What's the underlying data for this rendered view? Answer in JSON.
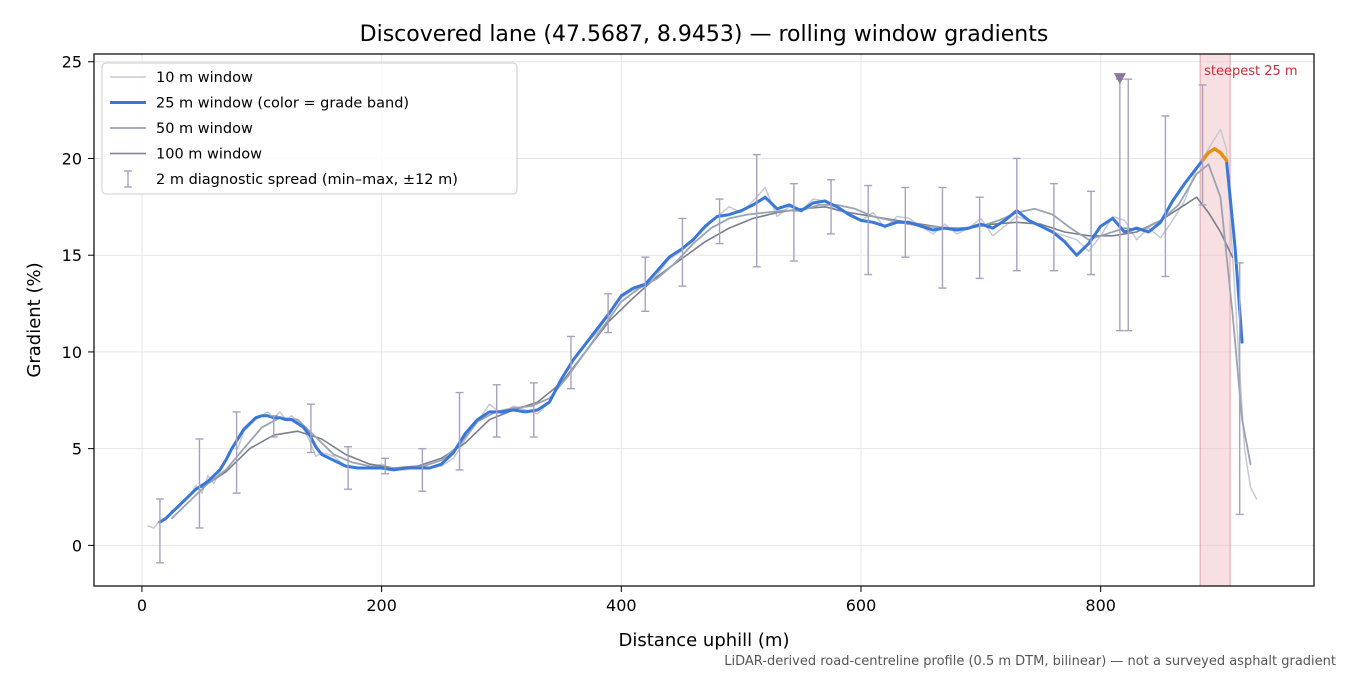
{
  "chart_data": {
    "type": "line",
    "title": "Discovered lane (47.5687, 8.9453) — rolling window gradients",
    "xlabel": "Distance uphill (m)",
    "ylabel": "Gradient (%)",
    "xlim": [
      -40,
      978
    ],
    "ylim": [
      -2.1,
      25.4
    ],
    "xticks": [
      "0",
      "200",
      "400",
      "600",
      "800"
    ],
    "yticks": [
      "0",
      "5",
      "10",
      "15",
      "20",
      "25"
    ],
    "grid": true,
    "legend_position": "top-left",
    "footnote": "LiDAR-derived road-centreline profile (0.5 m DTM, bilinear) — not a surveyed asphalt gradient",
    "annotation": {
      "text": "steepest 25 m",
      "x_range": [
        883,
        908
      ]
    },
    "marker": {
      "x": 816,
      "y": 24.1,
      "color": "#8878a0"
    },
    "colors": {
      "w10": "#c5c9d5",
      "w25": "#3a78d8",
      "w25_steep": "#e8900a",
      "w50": "#9aa3b2",
      "w100": "#7a7f8c",
      "spread": "#a8a0c0",
      "band_fill": "#f2c4c8",
      "band_edge": "#e4a0a8"
    },
    "series": [
      {
        "name": "10 m window",
        "key": "w10",
        "x": [
          5,
          10,
          15,
          20,
          25,
          30,
          35,
          40,
          45,
          50,
          55,
          60,
          65,
          70,
          75,
          80,
          85,
          90,
          95,
          100,
          105,
          110,
          115,
          120,
          125,
          130,
          135,
          140,
          145,
          150,
          160,
          170,
          180,
          190,
          200,
          210,
          220,
          230,
          240,
          250,
          260,
          270,
          280,
          290,
          300,
          310,
          320,
          330,
          340,
          350,
          360,
          370,
          380,
          390,
          400,
          410,
          420,
          430,
          440,
          450,
          460,
          470,
          480,
          490,
          500,
          510,
          520,
          530,
          540,
          550,
          560,
          570,
          580,
          590,
          600,
          610,
          620,
          630,
          640,
          650,
          660,
          670,
          680,
          690,
          700,
          710,
          720,
          730,
          740,
          750,
          760,
          770,
          780,
          790,
          800,
          810,
          820,
          830,
          840,
          850,
          860,
          870,
          880,
          890,
          895,
          900,
          905,
          910,
          915,
          920,
          925,
          930
        ],
        "y": [
          1.0,
          0.9,
          1.3,
          1.3,
          1.8,
          1.9,
          2.3,
          2.6,
          3.1,
          2.7,
          3.6,
          3.2,
          3.8,
          4.4,
          5.0,
          5.0,
          5.9,
          6.2,
          6.5,
          6.7,
          6.9,
          6.6,
          6.9,
          6.5,
          6.7,
          6.4,
          6.0,
          5.4,
          4.6,
          4.8,
          4.6,
          4.1,
          4.0,
          4.0,
          4.2,
          3.9,
          3.9,
          4.1,
          4.0,
          4.1,
          4.5,
          5.5,
          6.4,
          7.3,
          6.8,
          7.2,
          7.0,
          6.8,
          7.4,
          8.5,
          9.6,
          10.4,
          11.0,
          12.0,
          12.8,
          13.2,
          13.4,
          14.0,
          14.8,
          15.2,
          15.8,
          16.4,
          17.0,
          17.5,
          17.2,
          17.8,
          18.5,
          17.0,
          17.5,
          17.3,
          17.9,
          17.8,
          17.3,
          17.2,
          16.8,
          17.2,
          16.4,
          17.0,
          16.9,
          16.5,
          16.1,
          16.6,
          16.1,
          16.4,
          16.9,
          16.0,
          16.5,
          17.0,
          16.8,
          16.5,
          16.2,
          16.0,
          15.8,
          15.2,
          16.0,
          17.0,
          16.8,
          15.8,
          16.4,
          15.9,
          16.8,
          17.8,
          19.5,
          20.5,
          21.0,
          21.5,
          20.5,
          15.0,
          10.0,
          5.0,
          3.0,
          2.4
        ]
      },
      {
        "name": "25 m window (color = grade band)",
        "key": "w25",
        "x": [
          15,
          20,
          25,
          30,
          35,
          40,
          45,
          50,
          55,
          60,
          65,
          70,
          75,
          80,
          85,
          90,
          95,
          100,
          105,
          110,
          115,
          120,
          125,
          130,
          135,
          140,
          145,
          150,
          160,
          170,
          180,
          190,
          200,
          210,
          220,
          230,
          240,
          250,
          260,
          270,
          280,
          290,
          300,
          310,
          320,
          330,
          340,
          350,
          360,
          370,
          380,
          390,
          400,
          410,
          420,
          430,
          440,
          450,
          460,
          470,
          480,
          490,
          500,
          510,
          520,
          530,
          540,
          550,
          560,
          570,
          580,
          590,
          600,
          610,
          620,
          630,
          640,
          650,
          660,
          670,
          680,
          690,
          700,
          710,
          720,
          730,
          740,
          750,
          760,
          770,
          780,
          790,
          800,
          810,
          820,
          830,
          840,
          850,
          860,
          870,
          880,
          885
        ],
        "y": [
          1.2,
          1.4,
          1.7,
          2.0,
          2.3,
          2.6,
          2.9,
          3.1,
          3.3,
          3.6,
          3.9,
          4.4,
          5.0,
          5.5,
          6.0,
          6.3,
          6.6,
          6.7,
          6.7,
          6.6,
          6.6,
          6.5,
          6.5,
          6.3,
          6.1,
          5.7,
          5.1,
          4.7,
          4.4,
          4.1,
          4.0,
          4.0,
          4.0,
          3.9,
          4.0,
          4.0,
          4.0,
          4.2,
          4.8,
          5.8,
          6.5,
          6.9,
          6.9,
          7.0,
          6.9,
          7.0,
          7.4,
          8.6,
          9.6,
          10.4,
          11.2,
          12.0,
          12.9,
          13.3,
          13.5,
          14.2,
          14.9,
          15.3,
          15.8,
          16.5,
          17.0,
          17.1,
          17.3,
          17.6,
          18.0,
          17.4,
          17.6,
          17.3,
          17.7,
          17.8,
          17.5,
          17.1,
          16.8,
          16.7,
          16.5,
          16.7,
          16.7,
          16.5,
          16.3,
          16.4,
          16.3,
          16.4,
          16.6,
          16.4,
          16.8,
          17.3,
          16.8,
          16.5,
          16.2,
          15.7,
          15.0,
          15.6,
          16.5,
          16.9,
          16.2,
          16.4,
          16.2,
          16.7,
          17.8,
          18.7,
          19.5,
          19.9
        ]
      },
      {
        "name": "25 m steepest segment",
        "key": "w25_steep",
        "legend": false,
        "x": [
          885,
          890,
          895,
          900,
          905
        ],
        "y": [
          19.9,
          20.3,
          20.5,
          20.3,
          19.9
        ]
      },
      {
        "name": "25 m descending tail",
        "key": "w25",
        "legend": false,
        "x": [
          905,
          912,
          918
        ],
        "y": [
          19.9,
          15.5,
          10.5
        ]
      },
      {
        "name": "50 m window",
        "key": "w50",
        "x": [
          25,
          40,
          55,
          70,
          85,
          100,
          115,
          130,
          145,
          160,
          175,
          190,
          205,
          220,
          235,
          250,
          265,
          280,
          295,
          310,
          325,
          340,
          355,
          370,
          385,
          400,
          415,
          430,
          445,
          460,
          475,
          490,
          505,
          520,
          535,
          550,
          565,
          580,
          595,
          610,
          625,
          640,
          655,
          670,
          685,
          700,
          715,
          730,
          745,
          760,
          775,
          790,
          805,
          820,
          835,
          850,
          865,
          880,
          890,
          900,
          910,
          918,
          925
        ],
        "y": [
          1.4,
          2.3,
          3.2,
          3.9,
          5.0,
          6.1,
          6.6,
          6.5,
          5.6,
          4.7,
          4.3,
          4.1,
          4.0,
          4.0,
          4.1,
          4.4,
          5.2,
          6.4,
          6.9,
          7.1,
          7.2,
          7.6,
          8.7,
          10.0,
          11.3,
          12.6,
          13.3,
          13.8,
          14.6,
          15.6,
          16.4,
          16.9,
          17.1,
          17.2,
          17.3,
          17.3,
          17.6,
          17.6,
          17.4,
          17.0,
          16.8,
          16.6,
          16.5,
          16.4,
          16.4,
          16.5,
          16.8,
          17.2,
          17.4,
          17.1,
          16.4,
          15.8,
          16.1,
          16.4,
          16.3,
          16.8,
          17.6,
          19.2,
          19.7,
          18.0,
          12.0,
          6.5,
          4.2
        ]
      },
      {
        "name": "100 m window",
        "key": "w100",
        "x": [
          50,
          70,
          90,
          110,
          130,
          150,
          170,
          190,
          210,
          230,
          250,
          270,
          290,
          310,
          330,
          350,
          370,
          390,
          410,
          430,
          450,
          470,
          490,
          510,
          530,
          550,
          570,
          590,
          610,
          630,
          650,
          670,
          690,
          710,
          730,
          750,
          770,
          790,
          810,
          830,
          850,
          870,
          880,
          890,
          900,
          910
        ],
        "y": [
          3.0,
          3.8,
          5.0,
          5.7,
          5.9,
          5.5,
          4.7,
          4.2,
          4.0,
          4.1,
          4.5,
          5.3,
          6.5,
          7.0,
          7.4,
          8.4,
          10.0,
          11.6,
          12.8,
          13.9,
          14.8,
          15.7,
          16.4,
          16.9,
          17.2,
          17.4,
          17.5,
          17.2,
          17.0,
          16.8,
          16.6,
          16.4,
          16.4,
          16.6,
          16.7,
          16.6,
          16.2,
          16.0,
          16.0,
          16.2,
          16.8,
          17.6,
          18.0,
          17.2,
          16.2,
          14.9
        ]
      }
    ],
    "spread": {
      "name": "2 m diagnostic spread (min–max, ±12 m)",
      "x": [
        15,
        48,
        79,
        110,
        141,
        172,
        203,
        234,
        265,
        296,
        327,
        358,
        389,
        420,
        451,
        482,
        513,
        544,
        575,
        606,
        637,
        668,
        699,
        730,
        761,
        792,
        816,
        823,
        854,
        885,
        916
      ],
      "ymin": [
        -0.9,
        0.9,
        2.7,
        5.6,
        4.8,
        2.9,
        3.7,
        2.8,
        3.9,
        5.6,
        5.6,
        8.1,
        11.0,
        12.1,
        13.4,
        15.6,
        14.4,
        14.7,
        16.1,
        14.0,
        14.9,
        13.3,
        13.8,
        14.2,
        14.2,
        14.0,
        11.1,
        11.1,
        13.9,
        17.6,
        1.6
      ],
      "ymax": [
        2.4,
        5.5,
        6.9,
        6.7,
        7.3,
        5.1,
        4.5,
        5.0,
        7.9,
        8.3,
        8.4,
        10.8,
        13.0,
        14.9,
        16.9,
        17.9,
        20.2,
        18.7,
        18.9,
        18.6,
        18.5,
        18.5,
        18.0,
        20.0,
        18.7,
        18.3,
        24.1,
        24.1,
        22.2,
        23.8,
        14.6
      ]
    }
  }
}
